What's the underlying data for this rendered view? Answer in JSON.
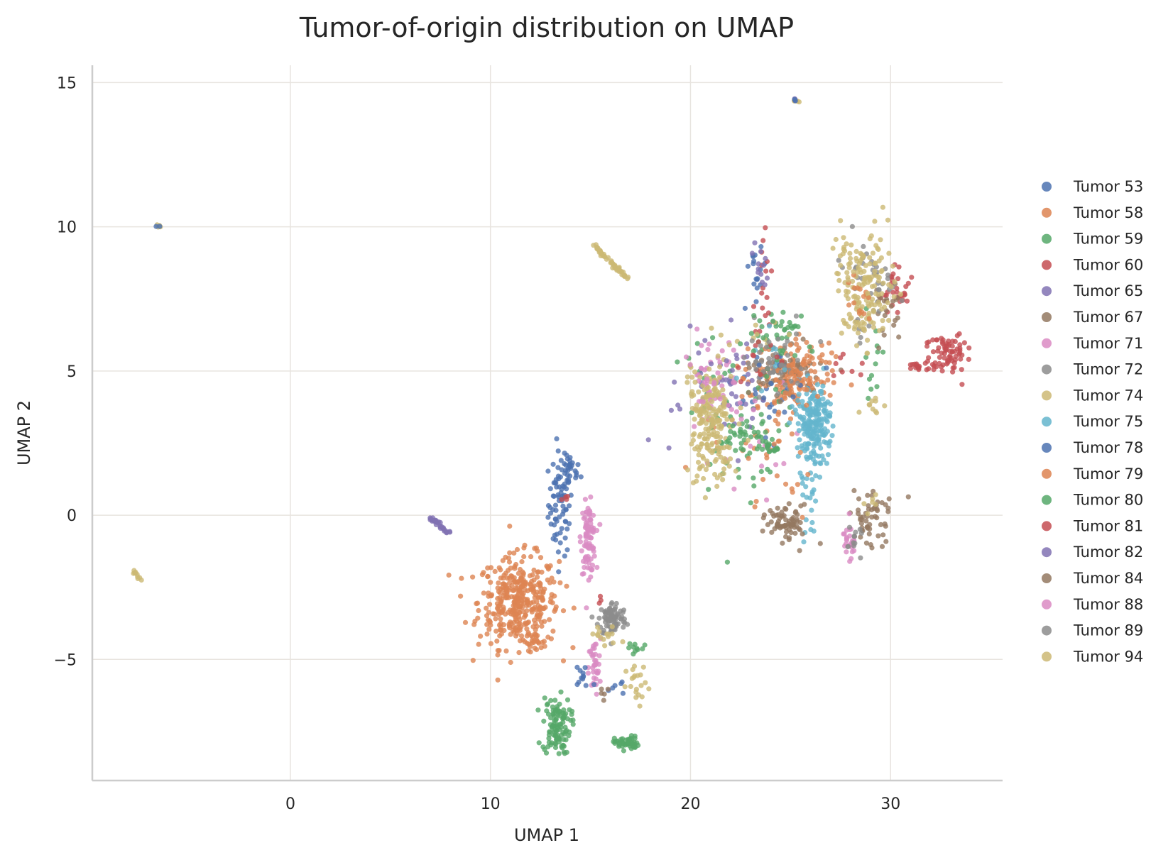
{
  "chart_data": {
    "type": "scatter",
    "title": "Tumor-of-origin distribution on UMAP",
    "xlabel": "UMAP 1",
    "ylabel": "UMAP 2",
    "xlim": [
      -9.9,
      35.6
    ],
    "ylim": [
      -9.2,
      15.6
    ],
    "xticks": [
      0,
      10,
      20,
      30
    ],
    "yticks": [
      -5,
      0,
      5,
      10,
      15
    ],
    "xtick_labels": [
      "0",
      "10",
      "20",
      "30"
    ],
    "ytick_labels": [
      "−5",
      "0",
      "5",
      "10",
      "15"
    ],
    "grid": true,
    "legend_position": "right",
    "point_alpha": 0.8,
    "series": [
      {
        "name": "Tumor 53",
        "color": "#4c72b0",
        "clusters": [
          [
            24.0,
            4.5,
            1.0,
            0.8,
            28
          ],
          [
            23.3,
            8.8,
            0.2,
            0.6,
            16
          ],
          [
            25.3,
            14.35,
            0.08,
            0.05,
            2
          ],
          [
            -6.6,
            10.0,
            0.06,
            0.04,
            2
          ]
        ]
      },
      {
        "name": "Tumor 58",
        "color": "#dd8452",
        "clusters": [
          [
            25.0,
            4.9,
            1.0,
            0.55,
            120
          ],
          [
            23.0,
            2.6,
            1.4,
            0.6,
            20
          ]
        ]
      },
      {
        "name": "Tumor 59",
        "color": "#55a868",
        "clusters": [
          [
            22.3,
            3.4,
            1.3,
            1.6,
            70
          ],
          [
            24.5,
            6.6,
            0.7,
            0.4,
            20
          ],
          [
            29.0,
            5.5,
            0.4,
            1.0,
            12
          ]
        ]
      },
      {
        "name": "Tumor 60",
        "color": "#c44e52",
        "clusters": [
          [
            23.6,
            7.3,
            0.2,
            1.2,
            18
          ],
          [
            30.2,
            7.6,
            0.35,
            0.4,
            30
          ]
        ]
      },
      {
        "name": "Tumor 65",
        "color": "#8172b3",
        "clusters": [
          [
            21.8,
            4.0,
            1.3,
            1.2,
            35
          ],
          [
            23.5,
            8.8,
            0.2,
            0.7,
            12
          ]
        ]
      },
      {
        "name": "Tumor 67",
        "color": "#937860",
        "clusters": [
          [
            24.7,
            5.0,
            0.9,
            0.5,
            50
          ],
          [
            29.8,
            6.9,
            0.6,
            0.6,
            22
          ]
        ]
      },
      {
        "name": "Tumor 71",
        "color": "#da8bc3",
        "clusters": [
          [
            21.2,
            4.7,
            0.7,
            0.7,
            45
          ],
          [
            23.5,
            2.2,
            1.0,
            1.0,
            15
          ]
        ]
      },
      {
        "name": "Tumor 72",
        "color": "#8c8c8c",
        "clusters": [
          [
            24.5,
            5.2,
            0.8,
            0.6,
            40
          ],
          [
            29.0,
            8.0,
            0.6,
            0.8,
            40
          ]
        ]
      },
      {
        "name": "Tumor 74",
        "color": "#ccb974",
        "clusters": [
          [
            21.0,
            3.4,
            0.6,
            1.2,
            150
          ],
          [
            28.9,
            8.0,
            0.7,
            0.9,
            120
          ],
          [
            28.4,
            6.6,
            0.4,
            0.3,
            20
          ],
          [
            29.0,
            3.8,
            0.3,
            0.2,
            10
          ],
          [
            23.4,
            6.1,
            0.4,
            0.2,
            8
          ]
        ]
      },
      {
        "name": "Tumor 75",
        "color": "#64b5cd",
        "clusters": [
          [
            26.2,
            3.2,
            0.45,
            0.65,
            200
          ],
          [
            25.9,
            1.0,
            0.3,
            0.8,
            25
          ],
          [
            24.0,
            5.6,
            0.5,
            0.5,
            10
          ]
        ]
      },
      {
        "name": "Tumor 78",
        "color": "#4c72b0",
        "clusters": [
          [
            24.5,
            4.6,
            1.0,
            0.8,
            12
          ]
        ]
      },
      {
        "name": "Tumor 79",
        "color": "#dd8452",
        "clusters": [
          [
            25.4,
            4.8,
            0.8,
            0.5,
            50
          ],
          [
            28.4,
            7.4,
            0.4,
            0.4,
            15
          ],
          [
            24.5,
            1.3,
            0.8,
            1.0,
            15
          ]
        ]
      },
      {
        "name": "Tumor 80",
        "color": "#55a868",
        "clusters": [
          [
            22.5,
            2.7,
            0.6,
            0.3,
            25
          ],
          [
            24.5,
            5.5,
            0.9,
            0.6,
            20
          ],
          [
            23.8,
            2.5,
            0.4,
            0.3,
            15
          ]
        ]
      },
      {
        "name": "Tumor 81",
        "color": "#c44e52",
        "clusters": [
          [
            23.5,
            5.3,
            0.6,
            0.4,
            10
          ],
          [
            28.0,
            5.0,
            0.6,
            0.4,
            8
          ]
        ]
      },
      {
        "name": "Tumor 82",
        "color": "#8172b3",
        "clusters": [
          [
            22.0,
            5.0,
            0.8,
            0.5,
            12
          ]
        ]
      },
      {
        "name": "Tumor 84",
        "color": "#937860",
        "clusters": [
          [
            24.9,
            -0.3,
            0.5,
            0.3,
            70
          ],
          [
            29.0,
            0.0,
            0.5,
            0.5,
            55
          ]
        ]
      },
      {
        "name": "Tumor 88",
        "color": "#da8bc3",
        "clusters": [
          [
            28.0,
            -0.9,
            0.2,
            0.4,
            25
          ],
          [
            21.0,
            4.5,
            0.7,
            0.6,
            15
          ]
        ]
      },
      {
        "name": "Tumor 89",
        "color": "#8c8c8c",
        "clusters": [
          [
            24.3,
            5.3,
            0.7,
            0.5,
            20
          ],
          [
            28.2,
            -1.0,
            0.25,
            0.3,
            12
          ]
        ]
      },
      {
        "name": "Tumor 94",
        "color": "#ccb974",
        "clusters": [
          [
            21.2,
            3.0,
            0.6,
            1.1,
            60
          ],
          [
            28.2,
            8.3,
            0.5,
            0.6,
            30
          ],
          [
            28.9,
            0.5,
            0.3,
            0.3,
            6
          ]
        ]
      }
    ],
    "extra_clusters": [
      {
        "color": "#4c72b0",
        "cx": 13.5,
        "cy": 0.4,
        "sx": 0.3,
        "sy": 0.9,
        "n": 75
      },
      {
        "color": "#4c72b0",
        "cx": 14.0,
        "cy": 1.5,
        "sx": 0.25,
        "sy": 0.3,
        "n": 25
      },
      {
        "color": "#dd8452",
        "cx": 11.4,
        "cy": -3.0,
        "sx": 1.0,
        "sy": 0.8,
        "n": 380
      },
      {
        "color": "#da8bc3",
        "cx": 14.9,
        "cy": -0.8,
        "sx": 0.18,
        "sy": 0.6,
        "n": 90
      },
      {
        "color": "#da8bc3",
        "cx": 15.2,
        "cy": -5.3,
        "sx": 0.15,
        "sy": 0.5,
        "n": 35
      },
      {
        "color": "#8c8c8c",
        "cx": 16.1,
        "cy": -3.6,
        "sx": 0.35,
        "sy": 0.3,
        "n": 90
      },
      {
        "color": "#55a868",
        "cx": 13.3,
        "cy": -7.3,
        "sx": 0.35,
        "sy": 0.5,
        "n": 110
      },
      {
        "color": "#55a868",
        "cx": 16.8,
        "cy": -7.9,
        "sx": 0.3,
        "sy": 0.12,
        "n": 50
      },
      {
        "color": "#55a868",
        "cx": 17.3,
        "cy": -4.6,
        "sx": 0.3,
        "sy": 0.15,
        "n": 10
      },
      {
        "color": "#ccb974",
        "cx": 17.4,
        "cy": -6.0,
        "sx": 0.3,
        "sy": 0.4,
        "n": 20
      },
      {
        "color": "#ccb974",
        "cx": 15.7,
        "cy": -4.2,
        "sx": 0.4,
        "sy": 0.2,
        "n": 15
      },
      {
        "color": "#4c72b0",
        "cx": 14.7,
        "cy": -5.6,
        "sx": 0.35,
        "sy": 0.3,
        "n": 12
      },
      {
        "color": "#4c72b0",
        "cx": 16.3,
        "cy": -5.9,
        "sx": 0.25,
        "sy": 0.2,
        "n": 6
      },
      {
        "color": "#8172b3",
        "cx": 7.5,
        "cy": -0.35,
        "sx": 0.0,
        "sy": 0.0,
        "n": 30,
        "line": [
          7.0,
          -0.1,
          8.0,
          -0.65
        ]
      },
      {
        "color": "#ccb974",
        "cx": 16.0,
        "cy": 8.8,
        "sx": 0.0,
        "sy": 0.0,
        "n": 55,
        "line": [
          15.2,
          9.3,
          16.9,
          8.2
        ]
      },
      {
        "color": "#ccb974",
        "cx": -7.6,
        "cy": -2.1,
        "sx": 0.0,
        "sy": 0.0,
        "n": 10,
        "line": [
          -7.8,
          -1.95,
          -7.5,
          -2.25
        ]
      },
      {
        "color": "#ccb974",
        "cx": -6.6,
        "cy": 10.0,
        "sx": 0.08,
        "sy": 0.06,
        "n": 5
      },
      {
        "color": "#ccb974",
        "cx": 25.3,
        "cy": 14.35,
        "sx": 0.08,
        "sy": 0.06,
        "n": 5
      },
      {
        "color": "#8172b3",
        "cx": 25.2,
        "cy": 14.4,
        "sx": 0.05,
        "sy": 0.04,
        "n": 3
      },
      {
        "color": "#c44e52",
        "cx": 32.8,
        "cy": 5.7,
        "sx": 0.45,
        "sy": 0.35,
        "n": 70
      },
      {
        "color": "#c44e52",
        "cx": 31.5,
        "cy": 5.15,
        "sx": 0.4,
        "sy": 0.08,
        "n": 20
      },
      {
        "color": "#c44e52",
        "cx": 13.8,
        "cy": 0.6,
        "sx": 0.15,
        "sy": 0.1,
        "n": 4
      },
      {
        "color": "#c44e52",
        "cx": 15.5,
        "cy": -2.9,
        "sx": 0.05,
        "sy": 0.1,
        "n": 3
      },
      {
        "color": "#937860",
        "cx": 15.5,
        "cy": -6.2,
        "sx": 0.2,
        "sy": 0.2,
        "n": 5
      },
      {
        "color": "#dd8452",
        "cx": 12.2,
        "cy": -4.5,
        "sx": 0.3,
        "sy": 0.2,
        "n": 20
      }
    ]
  }
}
